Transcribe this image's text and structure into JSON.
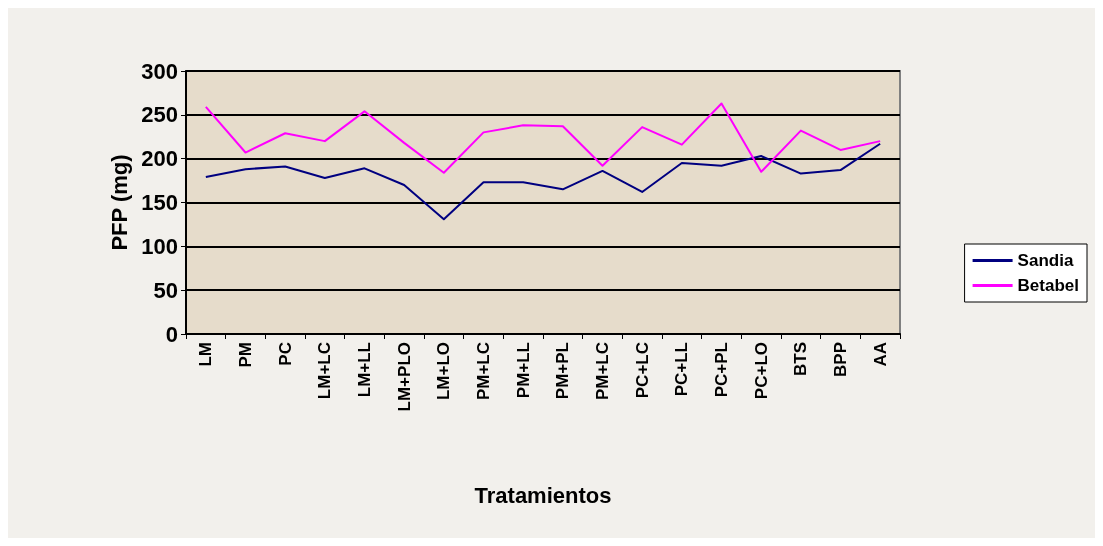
{
  "chart_data": {
    "type": "line",
    "xlabel": "Tratamientos",
    "ylabel": "PFP (mg)",
    "categories": [
      "LM",
      "PM",
      "PC",
      "LM+LC",
      "LM+LL",
      "LM+PLO",
      "LM+LO",
      "PM+LC",
      "PM+LL",
      "PM+PL",
      "PM+LC",
      "PC+LC",
      "PC+LL",
      "PC+PL",
      "PC+LO",
      "BTS",
      "BPP",
      "AA"
    ],
    "series": [
      {
        "name": "Sandia",
        "color": "#000080",
        "values": [
          179,
          188,
          191,
          178,
          189,
          170,
          131,
          173,
          173,
          165,
          186,
          162,
          195,
          192,
          203,
          183,
          187,
          217
        ]
      },
      {
        "name": "Betabel",
        "color": "#ff00ff",
        "values": [
          259,
          207,
          229,
          220,
          254,
          218,
          184,
          230,
          238,
          237,
          192,
          236,
          216,
          263,
          185,
          232,
          210,
          220
        ]
      }
    ],
    "ylim": [
      0,
      300
    ],
    "yticks": [
      0,
      50,
      100,
      150,
      200,
      250,
      300
    ],
    "grid": "y",
    "legend": "right",
    "marker": "none",
    "line_style": "solid"
  }
}
